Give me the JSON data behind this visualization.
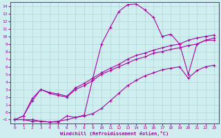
{
  "xlabel": "Windchill (Refroidissement éolien,°C)",
  "bg_color": "#d0eef0",
  "line_color": "#aa00aa",
  "grid_color": "#b0d8d8",
  "xlim": [
    -0.5,
    23.5
  ],
  "ylim": [
    -1.5,
    14.5
  ],
  "xticks": [
    0,
    1,
    2,
    3,
    4,
    5,
    6,
    7,
    8,
    9,
    10,
    11,
    12,
    13,
    14,
    15,
    16,
    17,
    18,
    19,
    20,
    21,
    22,
    23
  ],
  "yticks": [
    -1,
    0,
    1,
    2,
    3,
    4,
    5,
    6,
    7,
    8,
    9,
    10,
    11,
    12,
    13,
    14
  ],
  "line_hump_x": [
    0,
    1,
    2,
    3,
    4,
    5,
    6,
    7,
    8,
    9,
    10,
    11,
    12,
    13,
    14,
    15,
    16,
    17,
    18,
    19,
    20,
    21,
    22,
    23
  ],
  "line_hump_y": [
    -1.0,
    -1.0,
    -1.2,
    -1.2,
    -1.3,
    -1.3,
    -0.5,
    -0.7,
    -0.4,
    4.5,
    9.0,
    11.2,
    13.3,
    14.2,
    14.3,
    13.5,
    12.5,
    10.0,
    10.3,
    9.0,
    5.0,
    9.0,
    9.5,
    9.5
  ],
  "line_diag1_x": [
    0,
    1,
    2,
    3,
    4,
    5,
    6,
    7,
    8,
    9,
    10,
    11,
    12,
    13,
    14,
    15,
    16,
    17,
    18,
    19,
    20,
    21,
    22,
    23
  ],
  "line_diag1_y": [
    -1.0,
    -0.5,
    1.5,
    3.0,
    2.5,
    2.2,
    2.0,
    3.0,
    3.5,
    4.2,
    5.0,
    5.5,
    6.0,
    6.5,
    7.0,
    7.3,
    7.8,
    8.0,
    8.3,
    8.5,
    8.8,
    9.0,
    9.5,
    9.8
  ],
  "line_diag2_x": [
    0,
    1,
    2,
    3,
    4,
    5,
    6,
    7,
    8,
    9,
    10,
    11,
    12,
    13,
    14,
    15,
    16,
    17,
    18,
    19,
    20,
    21,
    22,
    23
  ],
  "line_diag2_y": [
    -1.0,
    -0.5,
    1.8,
    3.0,
    2.6,
    2.4,
    2.1,
    3.2,
    3.8,
    4.5,
    5.2,
    5.8,
    6.3,
    7.0,
    7.5,
    7.8,
    8.2,
    8.5,
    8.8,
    9.0,
    9.5,
    9.8,
    10.0,
    10.2
  ],
  "line_bot_x": [
    0,
    1,
    2,
    3,
    4,
    5,
    6,
    7,
    8,
    9,
    10,
    11,
    12,
    13,
    14,
    15,
    16,
    17,
    18,
    19,
    20,
    21,
    22,
    23
  ],
  "line_bot_y": [
    -1.0,
    -1.0,
    -1.0,
    -1.2,
    -1.3,
    -1.2,
    -1.0,
    -0.7,
    -0.5,
    -0.2,
    0.5,
    1.5,
    2.5,
    3.5,
    4.2,
    4.8,
    5.2,
    5.6,
    5.8,
    6.0,
    4.5,
    5.5,
    6.0,
    6.2
  ]
}
